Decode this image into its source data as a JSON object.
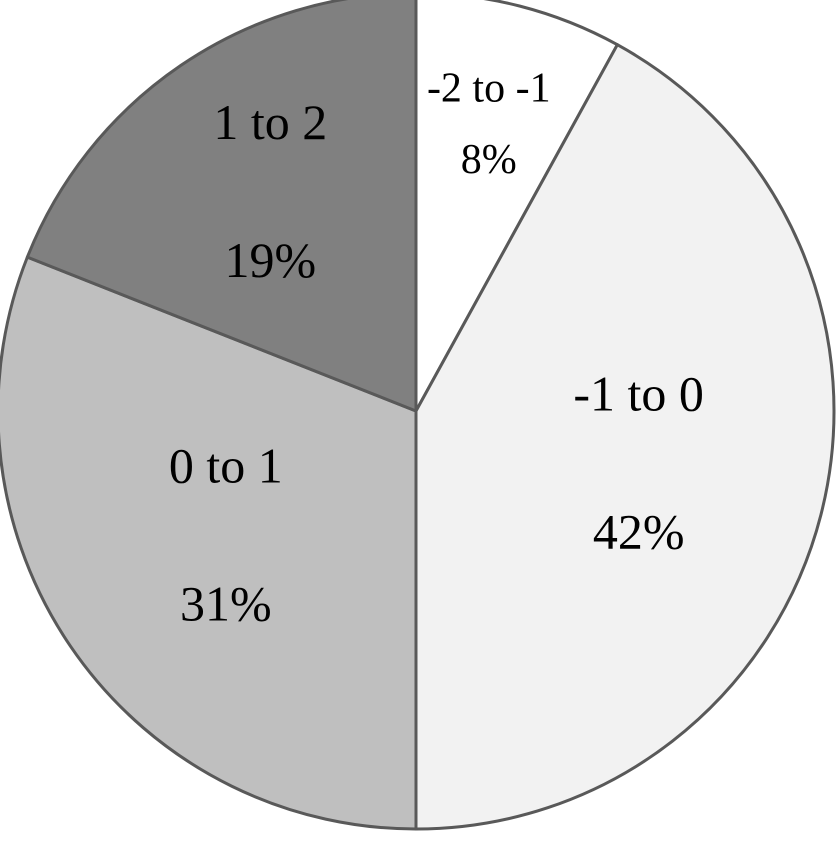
{
  "chart_data": {
    "type": "pie",
    "start_angle_deg": 0,
    "direction": "clockwise",
    "slices": [
      {
        "label": "-2 to -1",
        "percent_label": "8%",
        "value": 8,
        "color": "#ffffff"
      },
      {
        "label": "-1 to 0",
        "percent_label": "42%",
        "value": 42,
        "color": "#f2f2f2"
      },
      {
        "label": "0 to 1",
        "percent_label": "31%",
        "value": 31,
        "color": "#bfbfbf"
      },
      {
        "label": "1 to 2",
        "percent_label": "19%",
        "value": 19,
        "color": "#808080"
      }
    ],
    "edge_color": "#595959"
  }
}
